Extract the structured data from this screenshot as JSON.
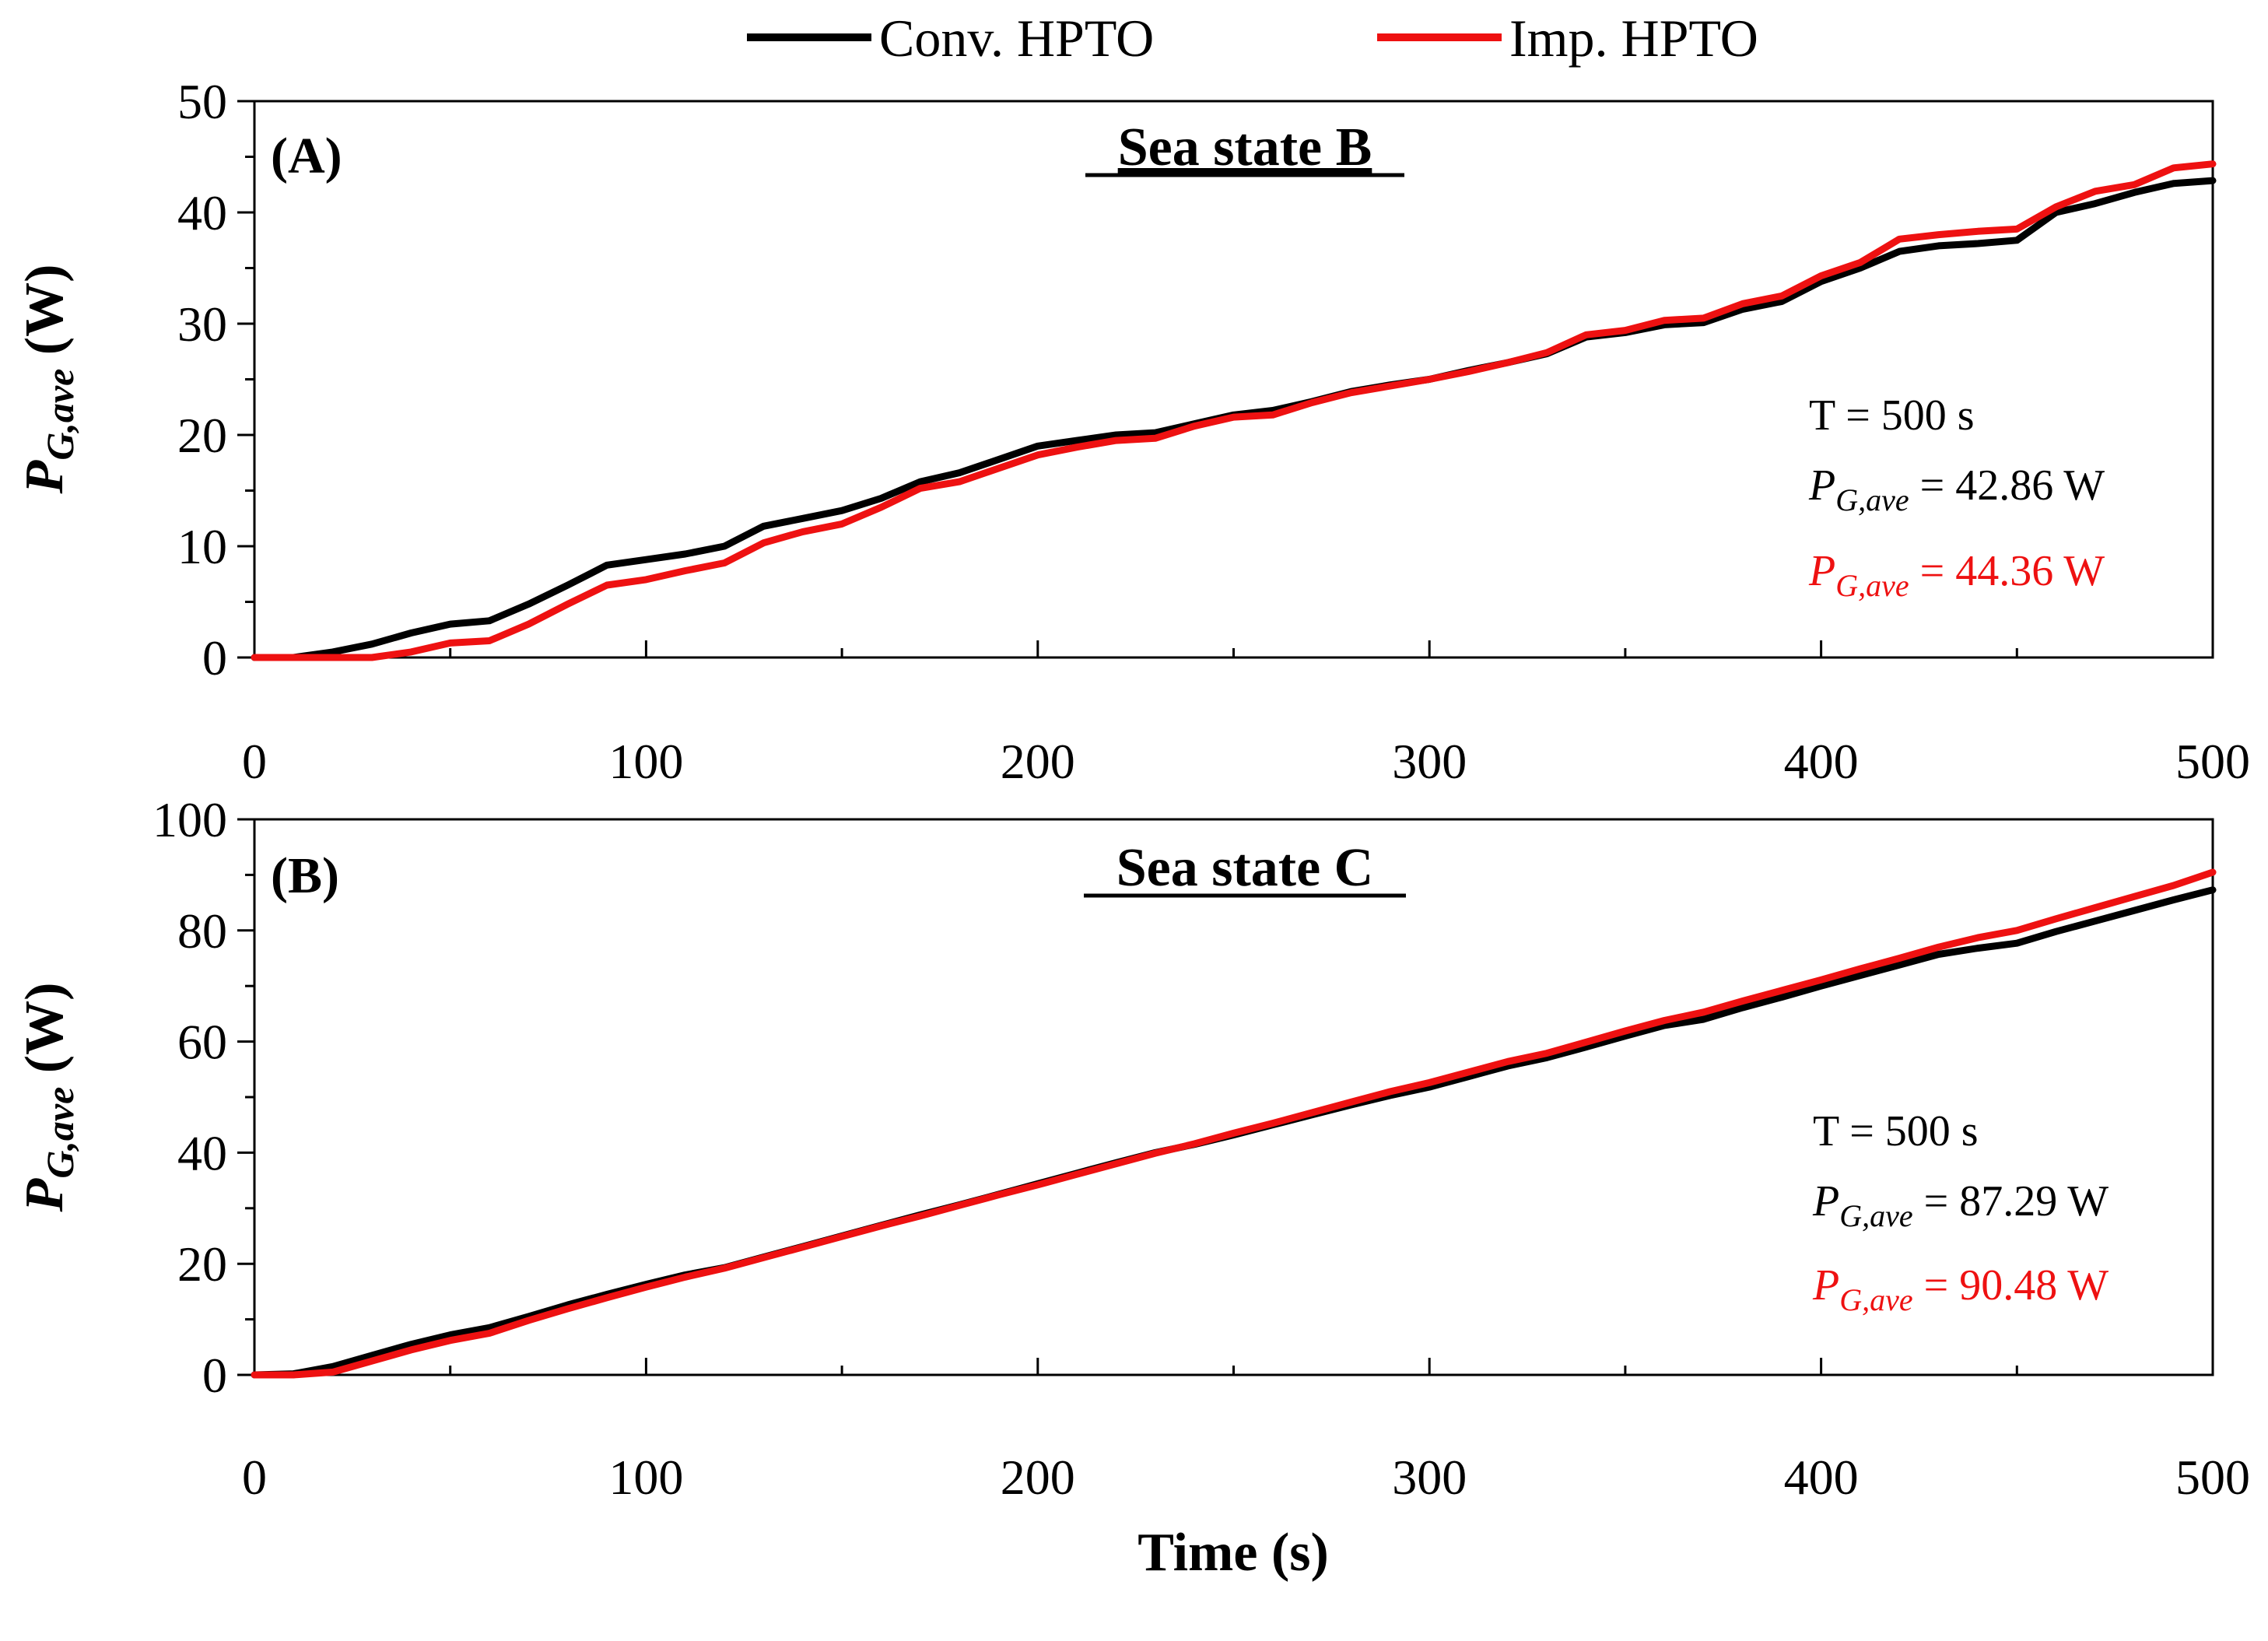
{
  "legend": {
    "items": [
      {
        "name": "Conv. HPTO",
        "color": "#000000"
      },
      {
        "name": "Imp.  HPTO",
        "color": "#ee1111"
      }
    ]
  },
  "xlabel": "Time (s)",
  "ylabel": {
    "main": "P",
    "sub": "G,ave",
    "unit": " (W)"
  },
  "chart_data": [
    {
      "type": "line",
      "panel": "(A)",
      "title": "Sea state B",
      "xlabel": "Time (s)",
      "ylabel": "P G,ave (W)",
      "xlim": [
        0,
        500
      ],
      "ylim": [
        0,
        50
      ],
      "xticks": [
        0,
        100,
        200,
        300,
        400,
        500
      ],
      "yticks": [
        0,
        10,
        20,
        30,
        40,
        50
      ],
      "annotation": {
        "t_line": "T = 500 s",
        "p_symbol": "P",
        "p_sub": "G,ave",
        "conv_value": "= 42.86 W",
        "imp_value": "= 44.36 W"
      },
      "series": [
        {
          "name": "Conv. HPTO",
          "color": "#000000",
          "x": [
            0,
            10,
            20,
            30,
            40,
            50,
            60,
            70,
            80,
            90,
            100,
            110,
            120,
            130,
            140,
            150,
            160,
            170,
            180,
            190,
            200,
            210,
            220,
            230,
            240,
            250,
            260,
            270,
            280,
            290,
            300,
            310,
            320,
            330,
            340,
            350,
            360,
            370,
            380,
            390,
            400,
            410,
            420,
            430,
            440,
            450,
            460,
            470,
            480,
            490,
            500
          ],
          "y": [
            0,
            0,
            0.5,
            1.2,
            2.2,
            3.0,
            3.3,
            4.8,
            6.5,
            8.3,
            8.8,
            9.3,
            10.0,
            11.8,
            12.5,
            13.2,
            14.3,
            15.8,
            16.6,
            17.8,
            19.0,
            19.5,
            20.0,
            20.2,
            21.0,
            21.8,
            22.2,
            23.0,
            23.9,
            24.5,
            25.0,
            25.8,
            26.5,
            27.3,
            28.8,
            29.2,
            29.9,
            30.1,
            31.3,
            32.0,
            33.8,
            35.0,
            36.5,
            37.0,
            37.2,
            37.5,
            40.0,
            40.8,
            41.8,
            42.6,
            42.86
          ]
        },
        {
          "name": "Imp.  HPTO",
          "color": "#ee1111",
          "x": [
            0,
            10,
            20,
            30,
            40,
            50,
            60,
            70,
            80,
            90,
            100,
            110,
            120,
            130,
            140,
            150,
            160,
            170,
            180,
            190,
            200,
            210,
            220,
            230,
            240,
            250,
            260,
            270,
            280,
            290,
            300,
            310,
            320,
            330,
            340,
            350,
            360,
            370,
            380,
            390,
            400,
            410,
            420,
            430,
            440,
            450,
            460,
            470,
            480,
            490,
            500
          ],
          "y": [
            0,
            0,
            0,
            0,
            0.5,
            1.3,
            1.5,
            3.0,
            4.8,
            6.5,
            7.0,
            7.8,
            8.5,
            10.3,
            11.3,
            12.0,
            13.5,
            15.2,
            15.8,
            17.0,
            18.2,
            18.9,
            19.5,
            19.7,
            20.8,
            21.6,
            21.8,
            22.9,
            23.8,
            24.4,
            25.0,
            25.7,
            26.5,
            27.4,
            29.0,
            29.4,
            30.3,
            30.5,
            31.8,
            32.5,
            34.3,
            35.5,
            37.6,
            38.0,
            38.3,
            38.5,
            40.5,
            41.9,
            42.5,
            44.0,
            44.36
          ]
        }
      ]
    },
    {
      "type": "line",
      "panel": "(B)",
      "title": "Sea state C",
      "xlabel": "Time (s)",
      "ylabel": "P G,ave (W)",
      "xlim": [
        0,
        500
      ],
      "ylim": [
        0,
        100
      ],
      "xticks": [
        0,
        100,
        200,
        300,
        400,
        500
      ],
      "yticks": [
        0,
        20,
        40,
        60,
        80,
        100
      ],
      "annotation": {
        "t_line": "T = 500 s",
        "p_symbol": "P",
        "p_sub": "G,ave",
        "conv_value": "= 87.29 W",
        "imp_value": "= 90.48 W"
      },
      "series": [
        {
          "name": "Conv. HPTO",
          "color": "#000000",
          "x": [
            0,
            10,
            20,
            30,
            40,
            50,
            60,
            70,
            80,
            90,
            100,
            110,
            120,
            130,
            140,
            150,
            160,
            170,
            180,
            190,
            200,
            210,
            220,
            230,
            240,
            250,
            260,
            270,
            280,
            290,
            300,
            310,
            320,
            330,
            340,
            350,
            360,
            370,
            380,
            390,
            400,
            410,
            420,
            430,
            440,
            450,
            460,
            470,
            480,
            490,
            500
          ],
          "y": [
            0,
            0.2,
            1.5,
            3.5,
            5.5,
            7.2,
            8.5,
            10.5,
            12.6,
            14.5,
            16.3,
            18.0,
            19.3,
            21.2,
            23.1,
            25.0,
            26.9,
            28.8,
            30.6,
            32.5,
            34.4,
            36.3,
            38.2,
            40.0,
            41.5,
            43.2,
            45.0,
            46.8,
            48.6,
            50.3,
            51.8,
            53.7,
            55.6,
            57.1,
            59.0,
            61.0,
            62.9,
            64.0,
            66.1,
            68.0,
            70.0,
            71.9,
            73.8,
            75.7,
            76.8,
            77.7,
            79.8,
            81.7,
            83.6,
            85.5,
            87.29
          ]
        },
        {
          "name": "Imp.  HPTO",
          "color": "#ee1111",
          "x": [
            0,
            10,
            20,
            30,
            40,
            50,
            60,
            70,
            80,
            90,
            100,
            110,
            120,
            130,
            140,
            150,
            160,
            170,
            180,
            190,
            200,
            210,
            220,
            230,
            240,
            250,
            260,
            270,
            280,
            290,
            300,
            310,
            320,
            330,
            340,
            350,
            360,
            370,
            380,
            390,
            400,
            410,
            420,
            430,
            440,
            450,
            460,
            470,
            480,
            490,
            500
          ],
          "y": [
            0,
            0,
            0.5,
            2.5,
            4.5,
            6.2,
            7.5,
            9.8,
            11.9,
            13.9,
            15.8,
            17.6,
            19.2,
            21.1,
            23.0,
            24.9,
            26.8,
            28.6,
            30.5,
            32.4,
            34.2,
            36.1,
            38.0,
            39.9,
            41.6,
            43.5,
            45.3,
            47.2,
            49.1,
            51.0,
            52.6,
            54.5,
            56.4,
            57.9,
            59.9,
            61.9,
            63.8,
            65.3,
            67.3,
            69.2,
            71.1,
            73.1,
            75.0,
            77.0,
            78.7,
            80.0,
            82.1,
            84.1,
            86.1,
            88.1,
            90.48
          ]
        }
      ]
    }
  ]
}
